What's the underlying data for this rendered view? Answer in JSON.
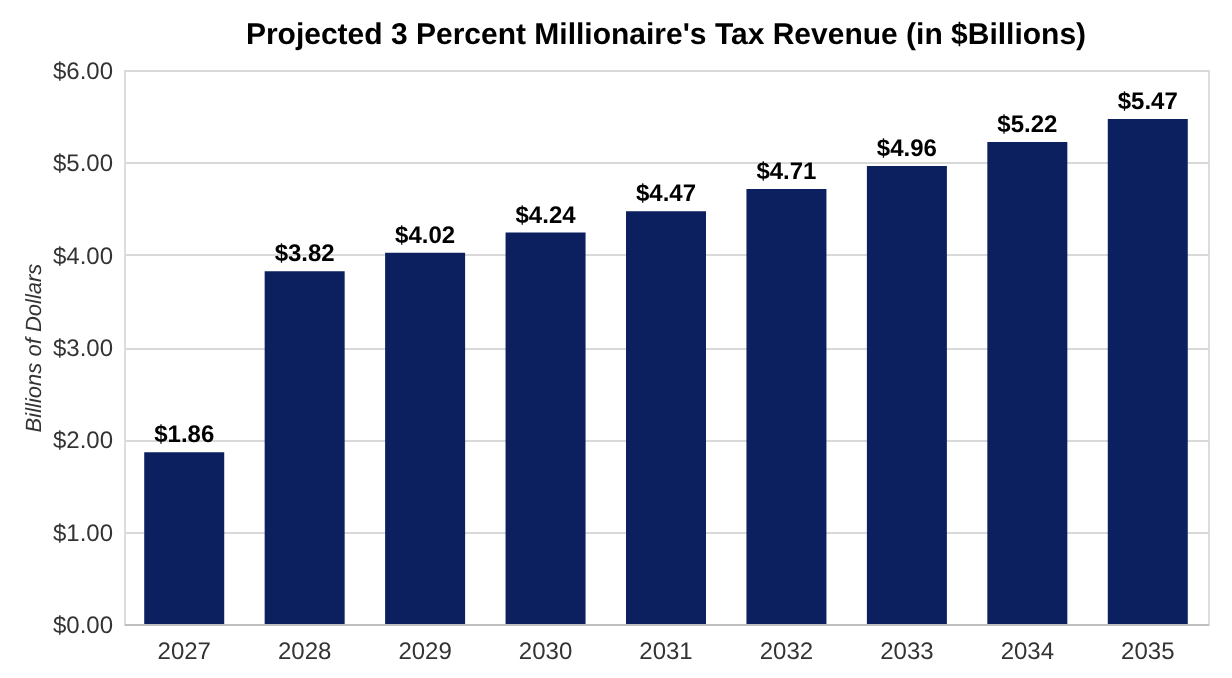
{
  "chart_data": {
    "type": "bar",
    "title": "Projected 3 Percent Millionaire's Tax Revenue (in $Billions)",
    "ylabel": "Billions of Dollars",
    "categories": [
      "2027",
      "2028",
      "2029",
      "2030",
      "2031",
      "2032",
      "2033",
      "2034",
      "2035"
    ],
    "values": [
      1.86,
      3.82,
      4.02,
      4.24,
      4.47,
      4.71,
      4.96,
      5.22,
      5.47
    ],
    "value_labels": [
      "$1.86",
      "$3.82",
      "$4.02",
      "$4.24",
      "$4.47",
      "$4.71",
      "$4.96",
      "$5.22",
      "$5.47"
    ],
    "color": "#0c1f5e",
    "ylim": [
      0,
      6
    ],
    "yticks": [
      {
        "value": 0,
        "label": "$0.00"
      },
      {
        "value": 1,
        "label": "$1.00"
      },
      {
        "value": 2,
        "label": "$2.00"
      },
      {
        "value": 3,
        "label": "$3.00"
      },
      {
        "value": 4,
        "label": "$4.00"
      },
      {
        "value": 5,
        "label": "$5.00"
      },
      {
        "value": 6,
        "label": "$6.00"
      }
    ],
    "grid": "y"
  }
}
